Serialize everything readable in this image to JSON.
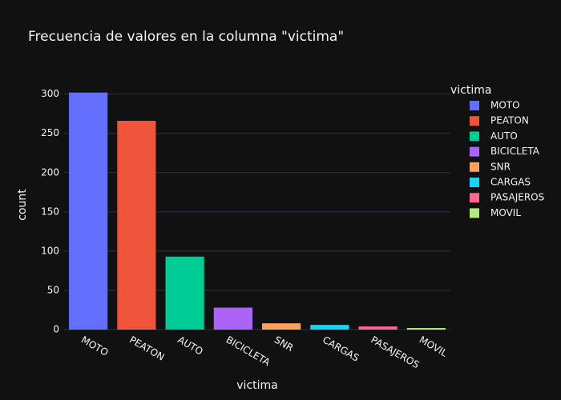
{
  "chart_data": {
    "type": "bar",
    "title": "Frecuencia de valores en la columna \"victima\"",
    "x_label": "victima",
    "y_label": "count",
    "legend_title": "victima",
    "categories": [
      "MOTO",
      "PEATON",
      "AUTO",
      "BICICLETA",
      "SNR",
      "CARGAS",
      "PASAJEROS",
      "MOVIL"
    ],
    "values": [
      302,
      266,
      93,
      28,
      8,
      6,
      4,
      2
    ],
    "colors": [
      "#636efa",
      "#ef553b",
      "#00cc96",
      "#ab63fa",
      "#ffa15a",
      "#19d3f3",
      "#ff6692",
      "#b6e880"
    ],
    "ylim": [
      0,
      318
    ],
    "yticks": [
      0,
      50,
      100,
      150,
      200,
      250,
      300
    ],
    "grid": true,
    "legend": "right"
  }
}
